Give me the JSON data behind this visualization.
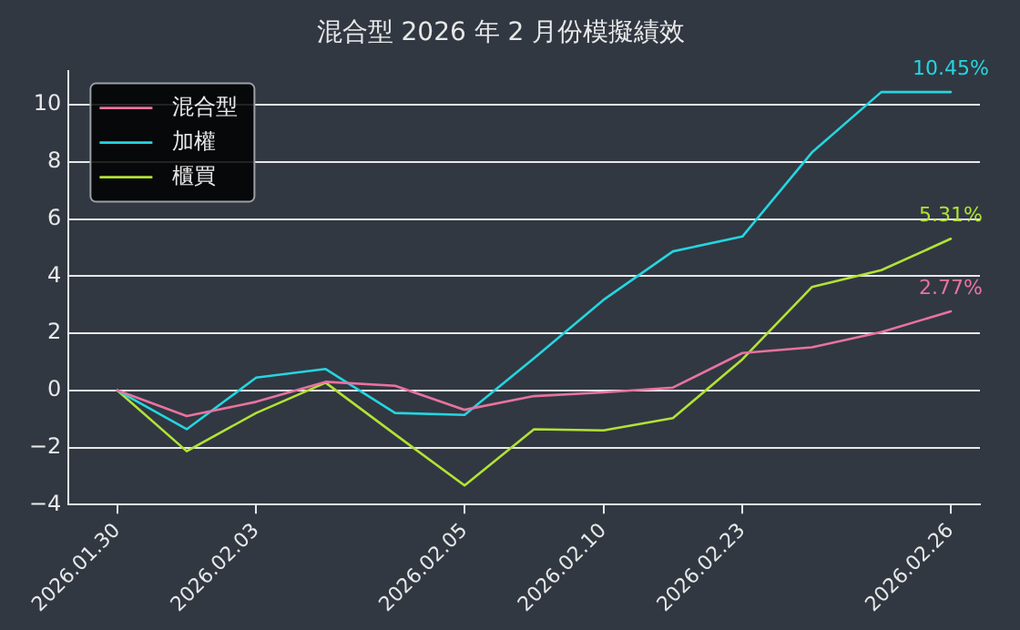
{
  "chart_data": {
    "type": "line",
    "title": "混合型 2026 年 2 月份模擬績效",
    "categories": [
      "2026.01.30",
      null,
      "2026.02.03",
      null,
      null,
      "2026.02.05",
      null,
      "2026.02.10",
      null,
      "2026.02.23",
      null,
      null,
      "2026.02.26"
    ],
    "ylim": [
      -4,
      11.2
    ],
    "yticks": [
      -4,
      -2,
      0,
      2,
      4,
      6,
      8,
      10
    ],
    "grid": "y",
    "legend": "top left",
    "marker": "none",
    "line_style": "solid",
    "series": [
      {
        "name": "混合型",
        "color": "#e8739f",
        "values": [
          0,
          -0.9,
          -0.4,
          0.3,
          0.16,
          -0.68,
          -0.2,
          -0.07,
          0.1,
          1.31,
          1.51,
          2.04,
          2.77
        ]
      },
      {
        "name": "加權",
        "color": "#25d5e0",
        "values": [
          0,
          -1.36,
          0.45,
          0.75,
          -0.79,
          -0.86,
          1.13,
          3.17,
          4.87,
          5.39,
          8.33,
          10.45,
          10.45
        ]
      },
      {
        "name": "櫃買",
        "color": "#b2e235",
        "values": [
          0,
          -2.13,
          -0.79,
          0.27,
          -1.54,
          -3.33,
          -1.36,
          -1.4,
          -0.97,
          1.09,
          3.62,
          4.21,
          5.31
        ]
      }
    ],
    "annotations": [
      {
        "text": "10.45%",
        "x": "2026.02.26",
        "y": 10.45
      },
      {
        "text": "5.31%",
        "x": "2026.02.26",
        "y": 5.31
      },
      {
        "text": "2.77%",
        "x": "2026.02.26",
        "y": 2.77
      }
    ]
  }
}
